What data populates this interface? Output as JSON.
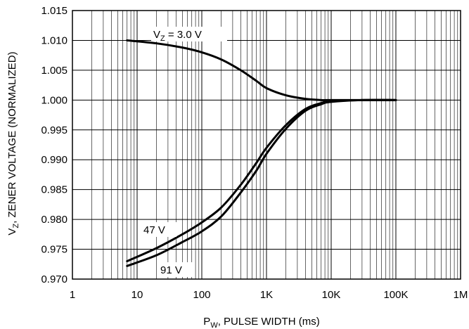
{
  "chart_data": {
    "type": "line",
    "xscale": "log",
    "xlim": [
      1,
      1000000
    ],
    "ylim": [
      0.97,
      1.015
    ],
    "grid": true,
    "xlabel": {
      "main": "P",
      "sub": "W",
      "rest": ", PULSE WIDTH (ms)"
    },
    "ylabel": {
      "main": "V",
      "sub": "Z",
      "rest": ", ZENER VOLTAGE (NORMALIZED)"
    },
    "x_tick_labels": [
      "1",
      "10",
      "100",
      "1K",
      "10K",
      "100K",
      "1M"
    ],
    "x_tick_values": [
      1,
      10,
      100,
      1000,
      10000,
      100000,
      1000000
    ],
    "y_tick_labels": [
      "0.970",
      "0.975",
      "0.980",
      "0.985",
      "0.990",
      "0.995",
      "1.000",
      "1.005",
      "1.010",
      "1.015"
    ],
    "y_tick_values": [
      0.97,
      0.975,
      0.98,
      0.985,
      0.99,
      0.995,
      1.0,
      1.005,
      1.01,
      1.015
    ],
    "series": [
      {
        "name": "VZ = 3.0 V",
        "label": {
          "main": "V",
          "sub": "Z",
          "rest": " = 3.0 V"
        },
        "x": [
          7,
          20,
          50,
          100,
          200,
          400,
          700,
          1000,
          2000,
          4000,
          7000,
          10000,
          30000,
          100000
        ],
        "y": [
          1.01,
          1.0095,
          1.0088,
          1.008,
          1.0068,
          1.005,
          1.0032,
          1.002,
          1.0008,
          1.0002,
          1.0,
          1.0,
          1.0,
          1.0
        ]
      },
      {
        "name": "47 V",
        "label": {
          "main": "47 V",
          "sub": "",
          "rest": ""
        },
        "x": [
          7,
          20,
          50,
          100,
          200,
          400,
          700,
          1000,
          2000,
          4000,
          7000,
          10000,
          30000,
          100000
        ],
        "y": [
          0.973,
          0.9752,
          0.9775,
          0.9795,
          0.982,
          0.9858,
          0.9895,
          0.992,
          0.9958,
          0.9985,
          0.9995,
          0.9998,
          1.0,
          1.0
        ]
      },
      {
        "name": "91 V",
        "label": {
          "main": "91 V",
          "sub": "",
          "rest": ""
        },
        "x": [
          7,
          20,
          50,
          100,
          200,
          400,
          700,
          1000,
          2000,
          4000,
          7000,
          10000,
          30000,
          100000
        ],
        "y": [
          0.9722,
          0.974,
          0.9762,
          0.978,
          0.9805,
          0.9845,
          0.9882,
          0.991,
          0.9952,
          0.9982,
          0.9993,
          0.9997,
          1.0,
          1.0
        ]
      }
    ]
  }
}
